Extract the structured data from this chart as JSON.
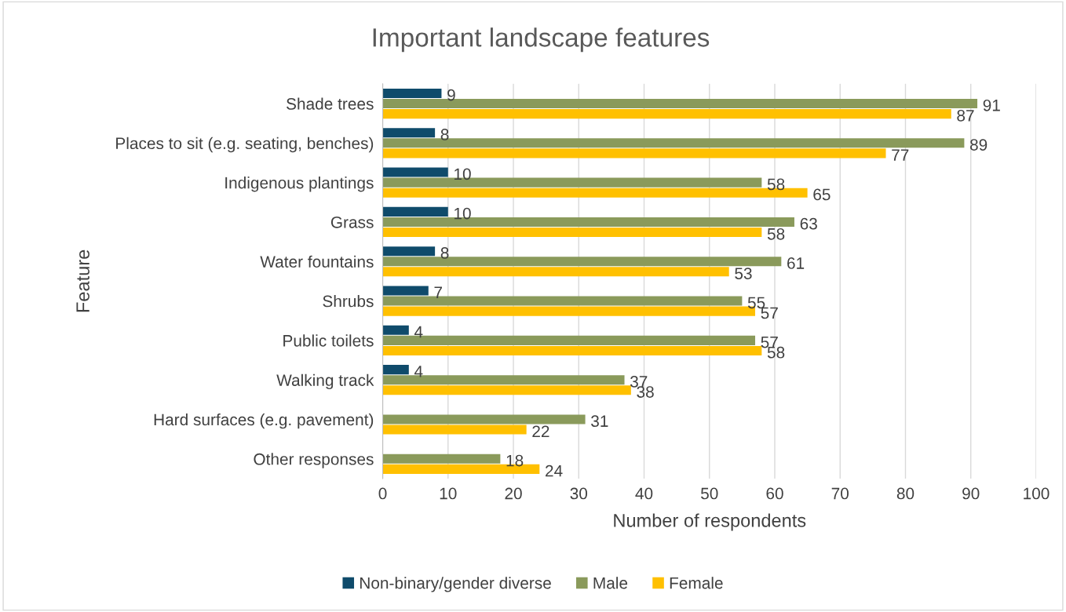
{
  "chart_data": {
    "type": "bar",
    "orientation": "horizontal",
    "title": "Important landscape features",
    "xlabel": "Number of respondents",
    "ylabel": "Feature",
    "categories": [
      "Shade trees",
      "Places to sit (e.g. seating, benches)",
      "Indigenous plantings",
      "Grass",
      "Water fountains",
      "Shrubs",
      "Public toilets",
      "Walking track",
      "Hard surfaces (e.g. pavement)",
      "Other responses"
    ],
    "series": [
      {
        "name": "Non-binary/gender diverse",
        "color": "#0f4b6b",
        "values": [
          9,
          8,
          10,
          10,
          8,
          7,
          4,
          4,
          null,
          null
        ]
      },
      {
        "name": "Male",
        "color": "#8a9a5b",
        "values": [
          91,
          89,
          58,
          63,
          61,
          55,
          57,
          37,
          31,
          18
        ]
      },
      {
        "name": "Female",
        "color": "#ffc000",
        "values": [
          87,
          77,
          65,
          58,
          53,
          57,
          58,
          38,
          22,
          24
        ]
      }
    ],
    "xlim": [
      0,
      100
    ],
    "xticks": [
      0,
      10,
      20,
      30,
      40,
      50,
      60,
      70,
      80,
      90,
      100
    ],
    "grid": "x",
    "legend": "bottom",
    "data_labels": true
  }
}
